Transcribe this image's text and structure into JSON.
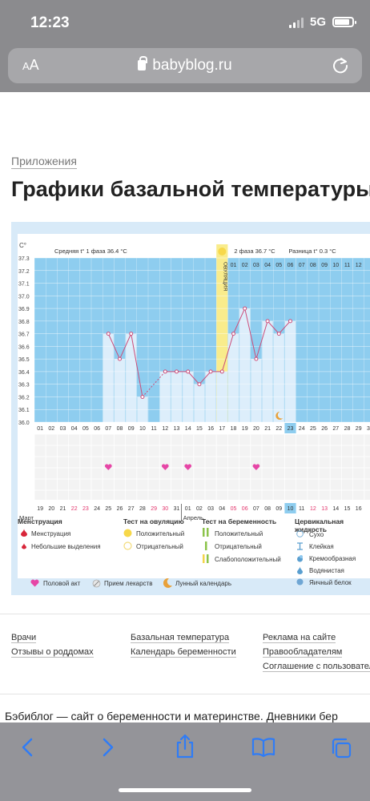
{
  "status": {
    "time": "12:23",
    "network": "5G"
  },
  "browser": {
    "aa": "AA",
    "url": "babyblog.ru"
  },
  "breadcrumb": "Приложения",
  "title": "Графики базальной температуры",
  "chart": {
    "unit": "С°",
    "phase1": "Средняя t° 1 фаза 36.4 °С",
    "phase2": "2 фаза 36.7 °С",
    "difference": "Разница t° 0.3 °С",
    "ovulation": "ОВУЛЯЦИЯ",
    "months": [
      "Март",
      "Апрель"
    ]
  },
  "chart_data": {
    "type": "line",
    "title": "",
    "ylabel": "С°",
    "ylim": [
      36.0,
      37.3
    ],
    "y_ticks": [
      "37.3",
      "37.2",
      "37.1",
      "37.0",
      "36.9",
      "36.8",
      "36.7",
      "36.6",
      "36.5",
      "36.4",
      "36.3",
      "36.2",
      "36.1",
      "36.0"
    ],
    "cycle_days": [
      "01",
      "02",
      "03",
      "04",
      "05",
      "06",
      "07",
      "08",
      "09",
      "10",
      "11",
      "12",
      "13",
      "14",
      "15",
      "16",
      "17",
      "18",
      "19",
      "20",
      "21",
      "22",
      "23",
      "24",
      "25",
      "26",
      "27",
      "28",
      "29",
      "30"
    ],
    "top_days_phase2": [
      "01",
      "02",
      "03",
      "04",
      "05",
      "06",
      "07",
      "08",
      "09",
      "10",
      "11",
      "12"
    ],
    "dates": [
      "19",
      "20",
      "21",
      "22",
      "23",
      "24",
      "25",
      "26",
      "27",
      "28",
      "29",
      "30",
      "31",
      "01",
      "02",
      "03",
      "04",
      "05",
      "06",
      "07",
      "08",
      "09",
      "10",
      "11",
      "12",
      "13",
      "14",
      "15",
      "16"
    ],
    "weekend_dates": [
      "22",
      "23",
      "29",
      "30",
      "05",
      "06",
      "12",
      "13"
    ],
    "highlight_day": "23",
    "highlight_date": "10",
    "series": [
      {
        "name": "",
        "x": [
          "07",
          "08",
          "09",
          "10",
          "12",
          "13",
          "14",
          "15",
          "16",
          "17",
          "18",
          "19",
          "20",
          "21",
          "22",
          "23"
        ],
        "values": [
          36.7,
          36.5,
          36.7,
          36.2,
          36.4,
          36.4,
          36.4,
          36.3,
          36.4,
          36.4,
          36.7,
          36.9,
          36.5,
          36.8,
          36.7,
          36.8
        ]
      }
    ],
    "ovulation_day": "17",
    "intercourse_days": [
      "07",
      "12",
      "14",
      "20"
    ],
    "lunar_day": "22"
  },
  "legend": {
    "menstruation_head": "Менструация",
    "menstruation": "Менструация",
    "spotting": "Небольшие выделения",
    "ovulation_test_head": "Тест на овуляцию",
    "positive": "Положительный",
    "negative": "Отрицательный",
    "pregnancy_test_head": "Тест на беременность",
    "preg_positive": "Положительный",
    "preg_negative": "Отрицательный",
    "preg_weak": "Слабоположительный",
    "cervical_head": "Цервикальная жидкость",
    "dry": "Сухо",
    "sticky": "Клейкая",
    "creamy": "Кремообразная",
    "watery": "Водянистая",
    "eggwhite": "Яичный белок",
    "intercourse": "Половой акт",
    "medicine": "Прием лекарств",
    "lunar": "Лунный календарь"
  },
  "footer": {
    "doctors": "Врачи",
    "reviews": "Отзывы о роддомах",
    "basal": "Базальная температура",
    "calendar": "Календарь беременности",
    "ads": "Реклама на сайте",
    "rights": "Правообладателям",
    "agreement": "Соглашение с пользователям",
    "about": "Бэбиблог — сайт о беременности и материнстве. Дневники бер"
  },
  "colors": {
    "accent": "#8ecdef",
    "line": "#cc4d7a",
    "heart": "#e646a6",
    "ovulation": "#f9ec8c"
  }
}
